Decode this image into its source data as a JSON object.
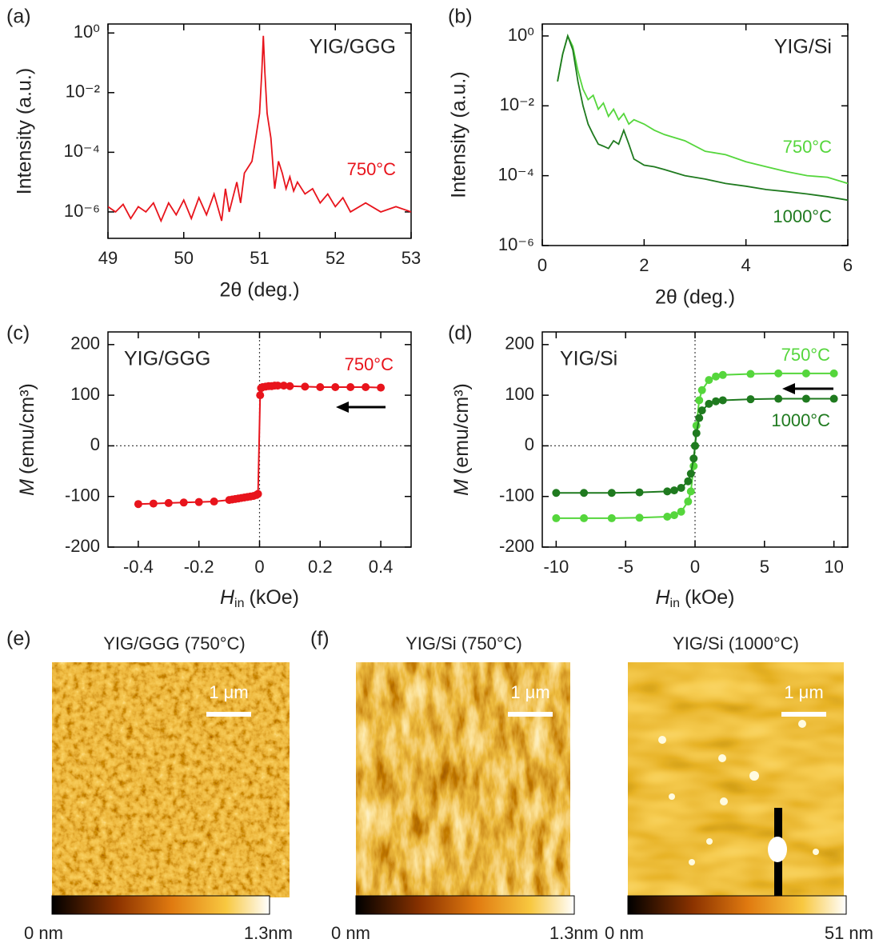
{
  "chart_data": [
    {
      "type": "line",
      "panel": "(a)",
      "sample": "YIG/GGG",
      "ylabel": "Intensity (a.u.)",
      "xlabel": "2θ (deg.)",
      "log_y": true,
      "xlim": [
        49,
        53
      ],
      "xticks": [
        49,
        50,
        51,
        52,
        53
      ],
      "ylim": [
        1.3e-07,
        2
      ],
      "yticks": [
        {
          "value": 1,
          "label": "10⁰"
        },
        {
          "value": 0.01,
          "label": "10⁻²"
        },
        {
          "value": 0.0001,
          "label": "10⁻⁴"
        },
        {
          "value": 1e-06,
          "label": "10⁻⁶"
        }
      ],
      "x": [
        49,
        49.1,
        49.2,
        49.3,
        49.4,
        49.5,
        49.6,
        49.7,
        49.8,
        49.9,
        50,
        50.1,
        50.2,
        50.3,
        50.4,
        50.5,
        50.55,
        50.6,
        50.7,
        50.75,
        50.8,
        50.9,
        50.95,
        51,
        51.03,
        51.05,
        51.07,
        51.1,
        51.15,
        51.2,
        51.25,
        51.3,
        51.35,
        51.4,
        51.45,
        51.5,
        51.6,
        51.7,
        51.8,
        51.9,
        52,
        52.1,
        52.2,
        52.4,
        52.6,
        52.8,
        53
      ],
      "series": [
        {
          "name": "750°C",
          "color": "#e8141c",
          "values": [
            1.5e-06,
            1e-06,
            1.8e-06,
            6e-07,
            1.5e-06,
            1e-06,
            2e-06,
            5e-07,
            2e-06,
            8e-07,
            2.5e-06,
            6e-07,
            3e-06,
            8e-07,
            4e-06,
            5e-07,
            6e-06,
            1e-06,
            1e-05,
            2e-06,
            2e-05,
            5e-05,
            0.0003,
            0.002,
            0.05,
            0.8,
            0.05,
            0.002,
            0.0003,
            6e-06,
            5e-05,
            2e-05,
            6e-06,
            1.5e-05,
            5e-06,
            1e-05,
            4e-06,
            6e-06,
            2e-06,
            4e-06,
            1.5e-06,
            3e-06,
            1e-06,
            2e-06,
            1e-06,
            1.5e-06,
            1e-06
          ]
        }
      ]
    },
    {
      "type": "line",
      "panel": "(b)",
      "sample": "YIG/Si",
      "ylabel": "Intensity (a.u.)",
      "xlabel": "2θ (deg.)",
      "log_y": true,
      "xlim": [
        0,
        6
      ],
      "xticks": [
        0,
        2,
        4,
        6
      ],
      "ylim": [
        1e-06,
        2.2
      ],
      "yticks": [
        {
          "value": 1,
          "label": "10⁰"
        },
        {
          "value": 0.01,
          "label": "10⁻²"
        },
        {
          "value": 0.0001,
          "label": "10⁻⁴"
        },
        {
          "value": 1e-06,
          "label": "10⁻⁶"
        }
      ],
      "x": [
        0.3,
        0.4,
        0.5,
        0.6,
        0.7,
        0.8,
        0.9,
        1.0,
        1.1,
        1.2,
        1.3,
        1.4,
        1.5,
        1.6,
        1.7,
        1.8,
        2.0,
        2.2,
        2.4,
        2.8,
        3.2,
        3.6,
        4.0,
        4.4,
        4.8,
        5.2,
        5.6,
        6.0
      ],
      "series": [
        {
          "name": "750°C",
          "color": "#55d63c",
          "values": [
            0.05,
            0.3,
            1,
            0.5,
            0.1,
            0.03,
            0.015,
            0.02,
            0.008,
            0.012,
            0.005,
            0.008,
            0.004,
            0.006,
            0.003,
            0.004,
            0.003,
            0.002,
            0.0015,
            0.001,
            0.0005,
            0.0004,
            0.00025,
            0.00018,
            0.00013,
            0.0001,
            9e-05,
            6e-05
          ]
        },
        {
          "name": "1000°C",
          "color": "#1f7a1f",
          "values": [
            0.05,
            0.3,
            1,
            0.4,
            0.05,
            0.01,
            0.003,
            0.0015,
            0.0008,
            0.0007,
            0.0006,
            0.001,
            0.0008,
            0.002,
            0.0008,
            0.0003,
            0.0002,
            0.00018,
            0.00015,
            0.0001,
            8e-05,
            6e-05,
            5e-05,
            4e-05,
            3.5e-05,
            3e-05,
            2.5e-05,
            2e-05
          ]
        }
      ]
    },
    {
      "type": "line",
      "panel": "(c)",
      "sample": "YIG/GGG",
      "ylabel_symbol": "M",
      "ylabel_unit": "(emu/cm³)",
      "xlabel_symbol": "H",
      "xlabel_subscript": "in",
      "xlabel_unit": "(kOe)",
      "markers": true,
      "zero_lines": true,
      "xlim": [
        -0.5,
        0.5
      ],
      "xticks": [
        -0.4,
        -0.2,
        0,
        0.2,
        0.4
      ],
      "ylim": [
        -200,
        225
      ],
      "yticks": [
        -200,
        -100,
        0,
        100,
        200
      ],
      "x": [
        -0.4,
        -0.35,
        -0.3,
        -0.25,
        -0.2,
        -0.15,
        -0.1,
        -0.09,
        -0.08,
        -0.07,
        -0.06,
        -0.05,
        -0.04,
        -0.03,
        -0.02,
        -0.01,
        -0.005,
        0.002,
        0.005,
        0.01,
        0.02,
        0.03,
        0.04,
        0.05,
        0.06,
        0.08,
        0.1,
        0.15,
        0.2,
        0.25,
        0.3,
        0.35,
        0.4
      ],
      "series": [
        {
          "name": "750°C",
          "color": "#e8141c",
          "values": [
            -115,
            -114,
            -113,
            -112,
            -111,
            -110,
            -107,
            -106,
            -105,
            -104,
            -103,
            -102,
            -101,
            -100,
            -99,
            -97,
            -95,
            100,
            114,
            116,
            117,
            118,
            118,
            119,
            119,
            119,
            118,
            117,
            116,
            116,
            116,
            116,
            115
          ]
        }
      ]
    },
    {
      "type": "line",
      "panel": "(d)",
      "sample": "YIG/Si",
      "ylabel_symbol": "M",
      "ylabel_unit": "(emu/cm³)",
      "xlabel_symbol": "H",
      "xlabel_subscript": "in",
      "xlabel_unit": "(kOe)",
      "markers": true,
      "zero_lines": true,
      "xlim": [
        -11,
        11
      ],
      "xticks": [
        -10,
        -5,
        0,
        5,
        10
      ],
      "ylim": [
        -200,
        225
      ],
      "yticks": [
        -200,
        -100,
        0,
        100,
        200
      ],
      "x": [
        -10,
        -8,
        -6,
        -4,
        -2,
        -1.5,
        -1,
        -0.5,
        -0.3,
        -0.1,
        0,
        0.1,
        0.3,
        0.5,
        1,
        1.5,
        2,
        4,
        6,
        8,
        10
      ],
      "series": [
        {
          "name": "750°C",
          "color": "#55d63c",
          "values": [
            -143,
            -143,
            -143,
            -142,
            -140,
            -137,
            -130,
            -110,
            -90,
            -40,
            0,
            40,
            90,
            110,
            130,
            137,
            140,
            142,
            143,
            143,
            143
          ]
        },
        {
          "name": "1000°C",
          "color": "#1f7a1f",
          "values": [
            -93,
            -93,
            -93,
            -92,
            -90,
            -88,
            -83,
            -70,
            -55,
            -25,
            0,
            25,
            55,
            70,
            83,
            88,
            90,
            92,
            93,
            93,
            93
          ]
        }
      ]
    }
  ],
  "afm": {
    "panels": [
      {
        "letter": "(e)",
        "title": "YIG/GGG (750°C)",
        "scale_bar": "1 μm",
        "colorbar_min": "0 nm",
        "colorbar_max": "1.3nm"
      },
      {
        "letter": "(f)",
        "title": "YIG/Si (750°C)",
        "scale_bar": "1 μm",
        "colorbar_min": "0 nm",
        "colorbar_max": "1.3nm"
      },
      {
        "title": "YIG/Si (1000°C)",
        "scale_bar": "1 μm",
        "colorbar_min": "0 nm",
        "colorbar_max": "51 nm"
      }
    ]
  }
}
